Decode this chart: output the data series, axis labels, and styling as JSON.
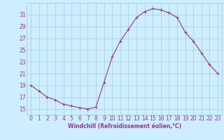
{
  "x": [
    0,
    1,
    2,
    3,
    4,
    5,
    6,
    7,
    8,
    9,
    10,
    11,
    12,
    13,
    14,
    15,
    16,
    17,
    18,
    19,
    20,
    21,
    22,
    23
  ],
  "y": [
    19,
    18,
    17,
    16.5,
    15.8,
    15.5,
    15.2,
    15.0,
    15.3,
    19.5,
    23.8,
    26.5,
    28.5,
    30.5,
    31.5,
    32.0,
    31.8,
    31.3,
    30.5,
    28.0,
    26.5,
    24.5,
    22.5,
    21.0
  ],
  "line_color": "#993399",
  "marker": "+",
  "bg_color": "#cceeff",
  "grid_color": "#aacccc",
  "ylabel_ticks": [
    15,
    17,
    19,
    21,
    23,
    25,
    27,
    29,
    31
  ],
  "xlabel": "Windchill (Refroidissement éolien,°C)",
  "ylim": [
    14.0,
    33.0
  ],
  "xlim": [
    -0.5,
    23.5
  ],
  "tick_color": "#993399",
  "label_color": "#993399",
  "tick_fontsize": 5.5,
  "xlabel_fontsize": 5.5
}
